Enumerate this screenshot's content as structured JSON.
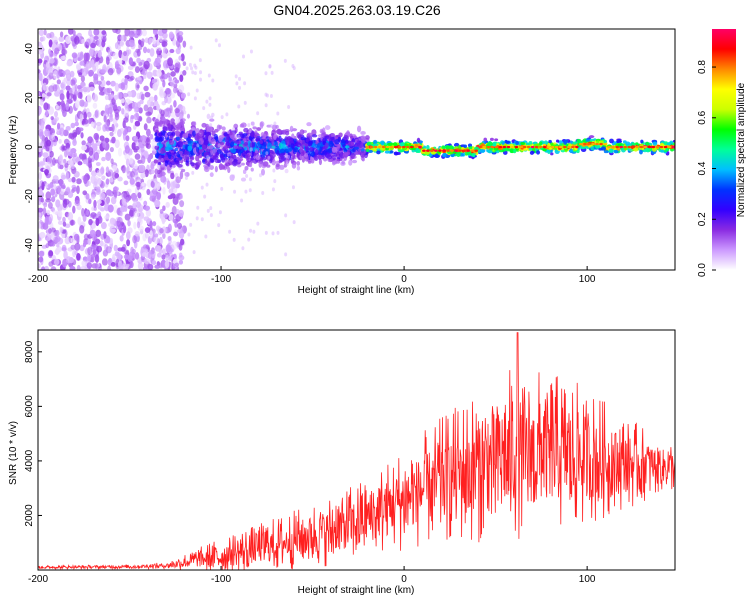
{
  "title": "GN04.2025.263.03.19.C26",
  "chart_data": [
    {
      "type": "heatmap",
      "xlabel": "Height of straight line (km)",
      "ylabel": "Frequency (Hz)",
      "xlim": [
        -200,
        148
      ],
      "ylim": [
        -50,
        48
      ],
      "xticks": [
        -200,
        -100,
        0,
        100
      ],
      "yticks": [
        -40,
        -20,
        0,
        20,
        40
      ],
      "grid": false,
      "colorbar": {
        "label": "Normalized spectral amplitude",
        "range": [
          0,
          0.95
        ],
        "ticks": [
          0.0,
          0.2,
          0.4,
          0.6,
          0.8
        ],
        "colors": [
          "#ffffff",
          "#cc99ff",
          "#8a2be2",
          "#3300ff",
          "#0033ff",
          "#00bfff",
          "#00ff99",
          "#00ff00",
          "#ccff00",
          "#ffff00",
          "#ff8800",
          "#ff0000",
          "#ff0066"
        ]
      },
      "regions": [
        {
          "name": "noise",
          "x_range": [
            -200,
            -120
          ],
          "frequency_spread_hz": [
            -50,
            48
          ],
          "amplitude": [
            0.02,
            0.15
          ]
        },
        {
          "name": "transition",
          "x_range": [
            -135,
            -20
          ],
          "frequency_spread_hz": [
            -12,
            12
          ],
          "amplitude": [
            0.1,
            0.45
          ]
        },
        {
          "name": "carrier",
          "x_range": [
            -20,
            148
          ],
          "frequency_spread_hz": [
            -3,
            3
          ],
          "amplitude": [
            0.15,
            0.95
          ]
        }
      ]
    },
    {
      "type": "line",
      "color": "#ff2020",
      "xlabel": "Height of straight line (km)",
      "ylabel": "SNR (10 * v/v)",
      "xlim": [
        -200,
        148
      ],
      "ylim": [
        0,
        8800
      ],
      "xticks": [
        -200,
        -100,
        0,
        100
      ],
      "yticks": [
        2000,
        4000,
        6000,
        8000
      ],
      "grid": false,
      "envelope": {
        "x": [
          -200,
          -150,
          -130,
          -115,
          -100,
          -80,
          -60,
          -40,
          -20,
          0,
          20,
          40,
          60,
          80,
          100,
          120,
          140,
          148
        ],
        "mean": [
          100,
          120,
          160,
          350,
          500,
          800,
          1100,
          1450,
          1900,
          2600,
          3300,
          3800,
          4300,
          4300,
          4100,
          3900,
          3850,
          3800
        ],
        "spread": [
          60,
          80,
          120,
          400,
          700,
          900,
          1100,
          1300,
          1500,
          1900,
          2300,
          2800,
          3200,
          3000,
          2600,
          1800,
          1000,
          900
        ],
        "peak": 8700,
        "peak_x": 62
      }
    }
  ]
}
